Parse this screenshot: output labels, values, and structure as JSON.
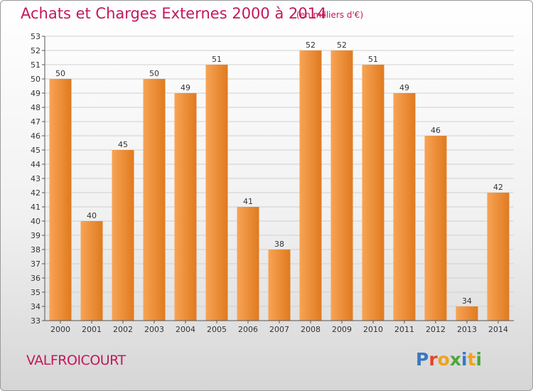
{
  "header": {
    "title": "Achats et Charges Externes 2000 à 2014",
    "subtitle": "(en milliers d'€)"
  },
  "footer": {
    "commune": "VALFROICOURT",
    "logo": "Proxiti"
  },
  "colors": {
    "title": "#c2185b",
    "bar_light": "#f7a455",
    "bar_dark": "#e07a1f",
    "grid": "#d0d0d0"
  },
  "chart_data": {
    "type": "bar",
    "title": "Achats et Charges Externes 2000 à 2014",
    "subtitle": "(en milliers d'€)",
    "xlabel": "",
    "ylabel": "",
    "categories": [
      "2000",
      "2001",
      "2002",
      "2003",
      "2004",
      "2005",
      "2006",
      "2007",
      "2008",
      "2009",
      "2010",
      "2011",
      "2012",
      "2013",
      "2014"
    ],
    "values": [
      50,
      40,
      45,
      50,
      49,
      51,
      41,
      38,
      52,
      52,
      51,
      49,
      46,
      34,
      42
    ],
    "ylim": [
      33,
      53
    ],
    "yticks": [
      33,
      34,
      35,
      36,
      37,
      38,
      39,
      40,
      41,
      42,
      43,
      44,
      45,
      46,
      47,
      48,
      49,
      50,
      51,
      52,
      53
    ],
    "grid": true,
    "data_labels": true
  }
}
